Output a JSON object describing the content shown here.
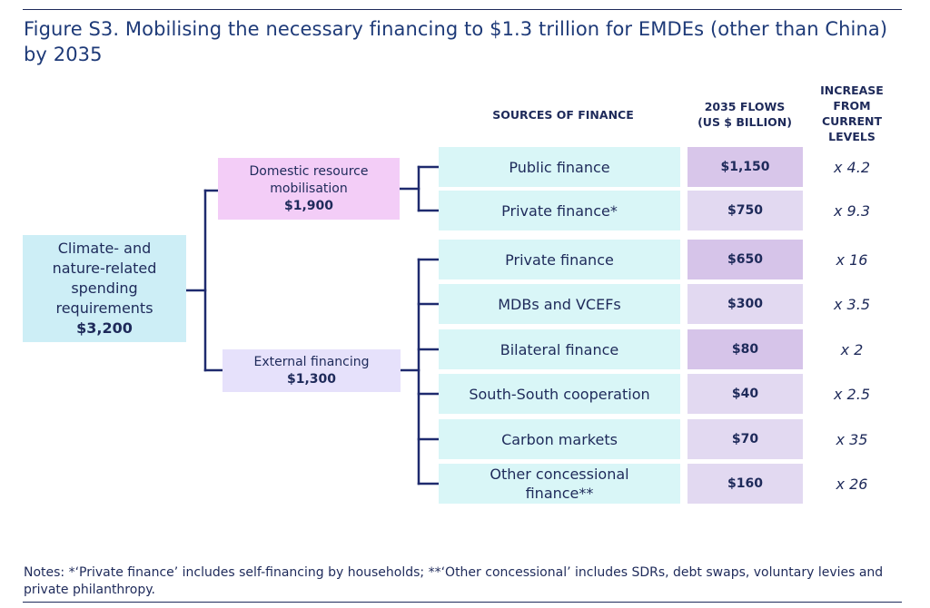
{
  "title": "Figure S3. Mobilising the necessary financing to $1.3 trillion for EMDEs (other than China) by 2035",
  "headers": {
    "sources": "SOURCES OF FINANCE",
    "flows_line1": "2035 FLOWS",
    "flows_line2": "(US $ BILLION)",
    "increase_line1": "INCREASE",
    "increase_line2": "FROM",
    "increase_line3": "CURRENT",
    "increase_line4": "LEVELS"
  },
  "root": {
    "line1": "Climate- and",
    "line2": "nature-related",
    "line3": "spending",
    "line4": "requirements",
    "value": "$3,200"
  },
  "domestic": {
    "line1": "Domestic resource",
    "line2": "mobilisation",
    "value": "$1,900"
  },
  "external": {
    "line1": "External financing",
    "value": "$1,300"
  },
  "rows": [
    {
      "source": "Public finance",
      "flow": "$1,150",
      "increase": "x 4.2",
      "flow_color": "#d8c6ea"
    },
    {
      "source": "Private finance*",
      "flow": "$750",
      "increase": "x 9.3",
      "flow_color": "#e2d9f1"
    },
    {
      "source": "Private finance",
      "flow": "$650",
      "increase": "x 16",
      "flow_color": "#d6c4e9"
    },
    {
      "source": "MDBs and VCEFs",
      "flow": "$300",
      "increase": "x 3.5",
      "flow_color": "#e2d9f1"
    },
    {
      "source": "Bilateral finance",
      "flow": "$80",
      "increase": "x 2",
      "flow_color": "#d6c4e9"
    },
    {
      "source": "South-South cooperation",
      "flow": "$40",
      "increase": "x 2.5",
      "flow_color": "#e2d9f1"
    },
    {
      "source": "Carbon markets",
      "flow": "$70",
      "increase": "x 35",
      "flow_color": "#e2d9f1"
    },
    {
      "source_line1": "Other concessional",
      "source_line2": "finance**",
      "flow": "$160",
      "increase": "x 26",
      "flow_color": "#e2d9f1"
    }
  ],
  "notes": "Notes: *‘Private finance’ includes self-financing by households; **‘Other concessional’ includes SDRs, debt swaps, voluntary levies and private philanthropy.",
  "colors": {
    "line": "#1e2a6e",
    "text": "#1e2a5a",
    "source_fill": "#d9f6f7",
    "root_fill": "#cdeef6",
    "domestic_fill": "#f3cdf7",
    "external_fill": "#e6e1fb"
  }
}
